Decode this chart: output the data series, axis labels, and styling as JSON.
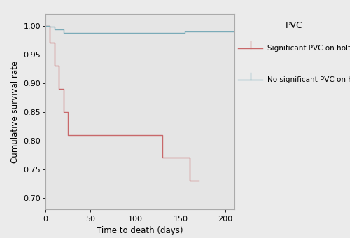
{
  "xlabel": "Time to death (days)",
  "ylabel": "Cumulative survival rate",
  "xlim": [
    0,
    210
  ],
  "ylim": [
    0.68,
    1.02
  ],
  "xticks": [
    0,
    50,
    100,
    150,
    200
  ],
  "yticks": [
    0.7,
    0.75,
    0.8,
    0.85,
    0.9,
    0.95,
    1.0
  ],
  "plot_background_color": "#e5e5e5",
  "outer_background": "#ebebeb",
  "sig_pvc_color": "#c8686a",
  "no_sig_pvc_color": "#7aabb8",
  "sig_pvc_x": [
    0,
    5,
    10,
    15,
    20,
    25,
    30,
    100,
    130,
    150,
    160,
    165,
    170
  ],
  "sig_pvc_y": [
    1.0,
    0.97,
    0.93,
    0.89,
    0.85,
    0.81,
    0.81,
    0.81,
    0.77,
    0.77,
    0.73,
    0.73,
    0.73
  ],
  "no_sig_pvc_x": [
    0,
    5,
    10,
    20,
    140,
    155,
    195,
    210
  ],
  "no_sig_pvc_y": [
    1.0,
    0.998,
    0.994,
    0.988,
    0.988,
    0.99,
    0.99,
    0.99
  ],
  "legend_title": "PVC",
  "legend_sig": "Significant PVC on holter ECG",
  "legend_no_sig": "No significant PVC on holter ECG"
}
